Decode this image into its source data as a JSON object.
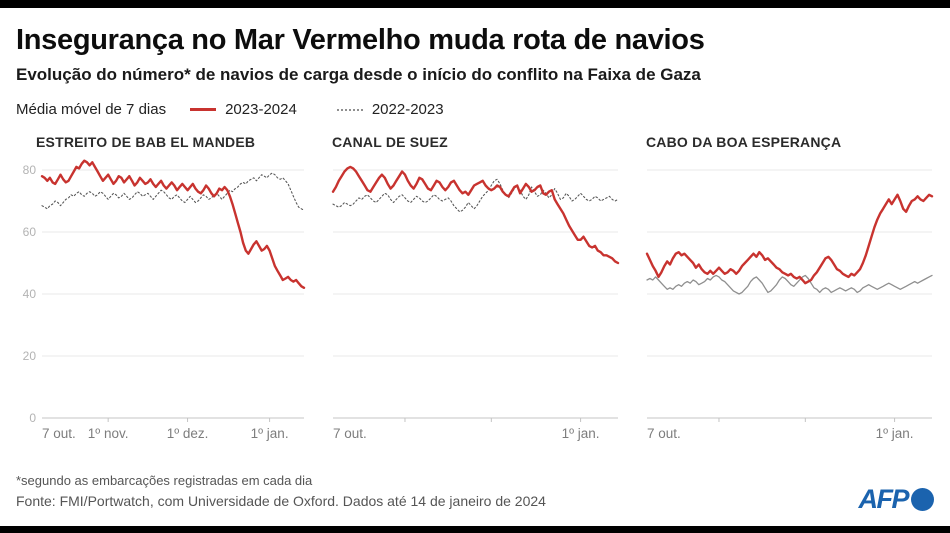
{
  "header": {
    "title": "Insegurança no Mar Vermelho muda rota de navios",
    "subtitle": "Evolução do número* de navios de carga desde o início do conflito na Faixa de Gaza"
  },
  "legend": {
    "label": "Média móvel de 7 dias",
    "items": [
      {
        "label": "2023-2024",
        "style": "solid-red"
      },
      {
        "label": "2022-2023",
        "style": "dotted-gray"
      }
    ]
  },
  "colors": {
    "accent_red": "#c8332f",
    "dotted_gray": "#5a5a5a",
    "solid_gray": "#8f8f8f",
    "grid": "#e8e8e8",
    "axis": "#c4c4c4",
    "axis_text": "#7d7d7d",
    "ytick_text": "#b3b3b3",
    "afp_blue": "#1b63ae",
    "black_bar": "#000000"
  },
  "footer": {
    "footnote": "*segundo as embarcações registradas em cada dia",
    "source": "Fonte: FMI/Portwatch, com Universidade de Oxford. Dados até 14 de janeiro de 2024",
    "logo_text": "AFP"
  },
  "chart_data": [
    {
      "type": "line",
      "title": "ESTREITO DE BAB EL MANDEB",
      "days": 100,
      "ylim": [
        0,
        85
      ],
      "yticks": [
        0,
        20,
        40,
        60,
        80
      ],
      "show_y_labels": true,
      "grid": true,
      "tick_days": [
        25,
        55,
        86
      ],
      "xlabels": [
        {
          "day": 0,
          "label": "7 out.",
          "anchor": "start"
        },
        {
          "day": 25,
          "label": "1º nov.",
          "anchor": "middle"
        },
        {
          "day": 55,
          "label": "1º dez.",
          "anchor": "middle"
        },
        {
          "day": 86,
          "label": "1º jan.",
          "anchor": "middle"
        }
      ],
      "series": [
        {
          "name": "2023-2024",
          "color": "#c8332f",
          "width": 2.4,
          "dash": "",
          "values": [
            78,
            77.5,
            76.5,
            77.5,
            76,
            75.5,
            77,
            78.5,
            77,
            76,
            76.5,
            78,
            79.5,
            81,
            80.5,
            82,
            83,
            82.5,
            81.5,
            82.5,
            81,
            79.5,
            78,
            76.5,
            77.5,
            78.5,
            77,
            75.5,
            76.5,
            78,
            77.5,
            76,
            77,
            78,
            76.5,
            75,
            76,
            77.5,
            76.5,
            75.5,
            76,
            77,
            75.5,
            74.5,
            75.5,
            76.5,
            75,
            74,
            75,
            76,
            75,
            73.5,
            74.5,
            75.5,
            74.5,
            73.5,
            74.5,
            75.5,
            74,
            73,
            72.5,
            73.5,
            75,
            74,
            72.5,
            71.5,
            72.5,
            74,
            73.5,
            74.5,
            73.5,
            71.5,
            69,
            66,
            63,
            60,
            56.5,
            54,
            53,
            54.5,
            56,
            57,
            55.5,
            54,
            54.5,
            55.5,
            54,
            51.5,
            49,
            47.5,
            46,
            44.5,
            45,
            45.5,
            44.5,
            44,
            44.5,
            43.5,
            42.5,
            42
          ]
        },
        {
          "name": "2022-2023",
          "color": "#5a5a5a",
          "width": 1.1,
          "dash": "1.6 2.4",
          "values": [
            68.5,
            68,
            67.5,
            68.5,
            69,
            70,
            69.5,
            68.5,
            69.5,
            70.5,
            71,
            72,
            71.5,
            72.5,
            73,
            72,
            71.5,
            72.5,
            73,
            72.5,
            71.5,
            72,
            73,
            72.5,
            71.5,
            70.5,
            71.5,
            72.5,
            72,
            71,
            71.5,
            72.5,
            71.5,
            70.5,
            71,
            72,
            73,
            72.5,
            71.5,
            72,
            72.5,
            71.5,
            70.5,
            71.5,
            72.5,
            73.5,
            73,
            72,
            71,
            70.5,
            71.5,
            72,
            71,
            70,
            69.5,
            70.5,
            71.5,
            70.5,
            69.5,
            70,
            71,
            72,
            71.5,
            70.5,
            71,
            72,
            72.5,
            71.5,
            70.5,
            71.5,
            72.5,
            73.5,
            73,
            74,
            74.5,
            75.5,
            76,
            75.5,
            76.5,
            77,
            77.5,
            76.5,
            77.5,
            78.5,
            78,
            77.5,
            78.5,
            79,
            78.5,
            77.5,
            77,
            77.5,
            76.5,
            75.5,
            73.5,
            71.5,
            69.5,
            68,
            67.5,
            67
          ]
        }
      ]
    },
    {
      "type": "line",
      "title": "CANAL DE SUEZ",
      "days": 100,
      "ylim": [
        0,
        85
      ],
      "yticks": [
        0,
        20,
        40,
        60,
        80
      ],
      "show_y_labels": false,
      "grid": true,
      "tick_days": [
        25,
        55,
        86
      ],
      "xlabels": [
        {
          "day": 0,
          "label": "7 out.",
          "anchor": "start"
        },
        {
          "day": 86,
          "label": "1º jan.",
          "anchor": "middle"
        }
      ],
      "series": [
        {
          "name": "2023-2024",
          "color": "#c8332f",
          "width": 2.4,
          "dash": "",
          "values": [
            73,
            74.5,
            76.5,
            78,
            79.5,
            80.5,
            81,
            80.5,
            79.5,
            78,
            76.5,
            75,
            73.5,
            73,
            74.5,
            76,
            77.5,
            78.5,
            77.5,
            75.5,
            74,
            75,
            76.5,
            78,
            79.5,
            78.5,
            76.5,
            75,
            74,
            75.5,
            77.5,
            77,
            75.5,
            74,
            73.5,
            75,
            76.5,
            76,
            74.5,
            73.5,
            74.5,
            76,
            76.5,
            75,
            73.5,
            72.5,
            73,
            72,
            73.5,
            75,
            75.5,
            76,
            76.5,
            75,
            74,
            73.5,
            74,
            75,
            74.5,
            73,
            72,
            71.5,
            73,
            74.5,
            75,
            72.5,
            74,
            75.5,
            74.5,
            73,
            73.5,
            74.5,
            75,
            72.5,
            72,
            73,
            73.5,
            70.5,
            69,
            67.5,
            66,
            64,
            62,
            60.5,
            59,
            57.5,
            57.5,
            58.5,
            57,
            55.5,
            55,
            55.5,
            54,
            53.5,
            52.5,
            52.5,
            52,
            51.5,
            50.5,
            50
          ]
        },
        {
          "name": "2022-2023",
          "color": "#5a5a5a",
          "width": 1.1,
          "dash": "1.6 2.4",
          "values": [
            69,
            68.5,
            68,
            68.5,
            69.5,
            69,
            68.5,
            69,
            70,
            71,
            70.5,
            71.5,
            72,
            71,
            70,
            69.5,
            70.5,
            71.5,
            72.5,
            72,
            70.5,
            69.5,
            70.5,
            71.5,
            72,
            71,
            70,
            69.5,
            70.5,
            71.5,
            71,
            70,
            69.5,
            70,
            71,
            72,
            71.5,
            70.5,
            70,
            70.5,
            71,
            70,
            68.5,
            67.5,
            66.5,
            67,
            68,
            69.5,
            68.5,
            67.5,
            68.5,
            70,
            71.5,
            72.5,
            73.5,
            75,
            76.5,
            77,
            75.5,
            73.5,
            72,
            71,
            72.5,
            74,
            75,
            73.5,
            71.5,
            70.5,
            72,
            74.5,
            73,
            71.5,
            72,
            73.5,
            72.5,
            71,
            72,
            74,
            72.5,
            70.5,
            71,
            72.5,
            71.5,
            70,
            70.5,
            71.5,
            72.5,
            71.5,
            70.5,
            70,
            70.5,
            71.5,
            71,
            70,
            70.5,
            71,
            71.5,
            70.5,
            70,
            70.5
          ]
        }
      ]
    },
    {
      "type": "line",
      "title": "CABO DA BOA ESPERANÇA",
      "days": 100,
      "ylim": [
        0,
        85
      ],
      "yticks": [
        0,
        20,
        40,
        60,
        80
      ],
      "show_y_labels": false,
      "grid": true,
      "tick_days": [
        25,
        55,
        86
      ],
      "xlabels": [
        {
          "day": 0,
          "label": "7 out.",
          "anchor": "start"
        },
        {
          "day": 86,
          "label": "1º jan.",
          "anchor": "middle"
        }
      ],
      "series": [
        {
          "name": "2023-2024",
          "color": "#c8332f",
          "width": 2.4,
          "dash": "",
          "values": [
            53,
            51,
            49,
            47.5,
            45.5,
            47,
            49,
            50.5,
            49.5,
            51.5,
            53,
            53.5,
            52.5,
            53,
            52,
            51,
            50,
            48.5,
            49.5,
            48,
            47,
            46.5,
            47.5,
            46.5,
            47.5,
            48.5,
            47.5,
            46.5,
            47,
            48,
            47.5,
            46.5,
            47.5,
            49,
            50,
            51,
            52,
            53,
            52,
            53.5,
            52.5,
            51,
            51.5,
            50.5,
            49.5,
            48.5,
            48,
            47,
            46.5,
            46,
            46.5,
            45.5,
            45,
            45.5,
            44.5,
            43.5,
            44,
            44.5,
            46,
            47,
            48.5,
            50,
            51.5,
            52,
            51,
            49.5,
            48,
            47.5,
            46.5,
            46,
            45.5,
            46.5,
            46,
            47,
            48,
            50,
            52.5,
            55.5,
            58.5,
            61.5,
            64,
            66,
            67.5,
            69,
            70.5,
            69,
            70.5,
            72,
            70,
            67.5,
            66.5,
            68.5,
            70,
            70.5,
            71.5,
            70.5,
            70,
            71,
            72,
            71.5
          ]
        },
        {
          "name": "2022-2023",
          "color": "#8f8f8f",
          "width": 1.3,
          "dash": "",
          "values": [
            44.5,
            45,
            44.5,
            45.5,
            44.5,
            43.5,
            42.5,
            41.5,
            42,
            41.5,
            42.5,
            43,
            42.5,
            43.5,
            44,
            43.5,
            44.5,
            44,
            43,
            43.5,
            44,
            45,
            44.5,
            45.5,
            46,
            45.5,
            44.5,
            44,
            43,
            42,
            41,
            40.5,
            40,
            40.5,
            41.5,
            42.5,
            44,
            45,
            45.5,
            44.5,
            43.5,
            42,
            40.5,
            41,
            42,
            43,
            44.5,
            45.5,
            45,
            44,
            43,
            42.5,
            43.5,
            44.5,
            45.5,
            46,
            45,
            43.5,
            42,
            41.5,
            40.5,
            41.5,
            42,
            41.5,
            40.5,
            41,
            41.5,
            42,
            41.5,
            41,
            41.5,
            42,
            41.5,
            40.5,
            41,
            42,
            42.5,
            43,
            42.5,
            42,
            41.5,
            42,
            42.5,
            43,
            43.5,
            43,
            42.5,
            42,
            41.5,
            42,
            42.5,
            43,
            43.5,
            44,
            43.5,
            44,
            44.5,
            45,
            45.5,
            46
          ]
        }
      ]
    }
  ]
}
